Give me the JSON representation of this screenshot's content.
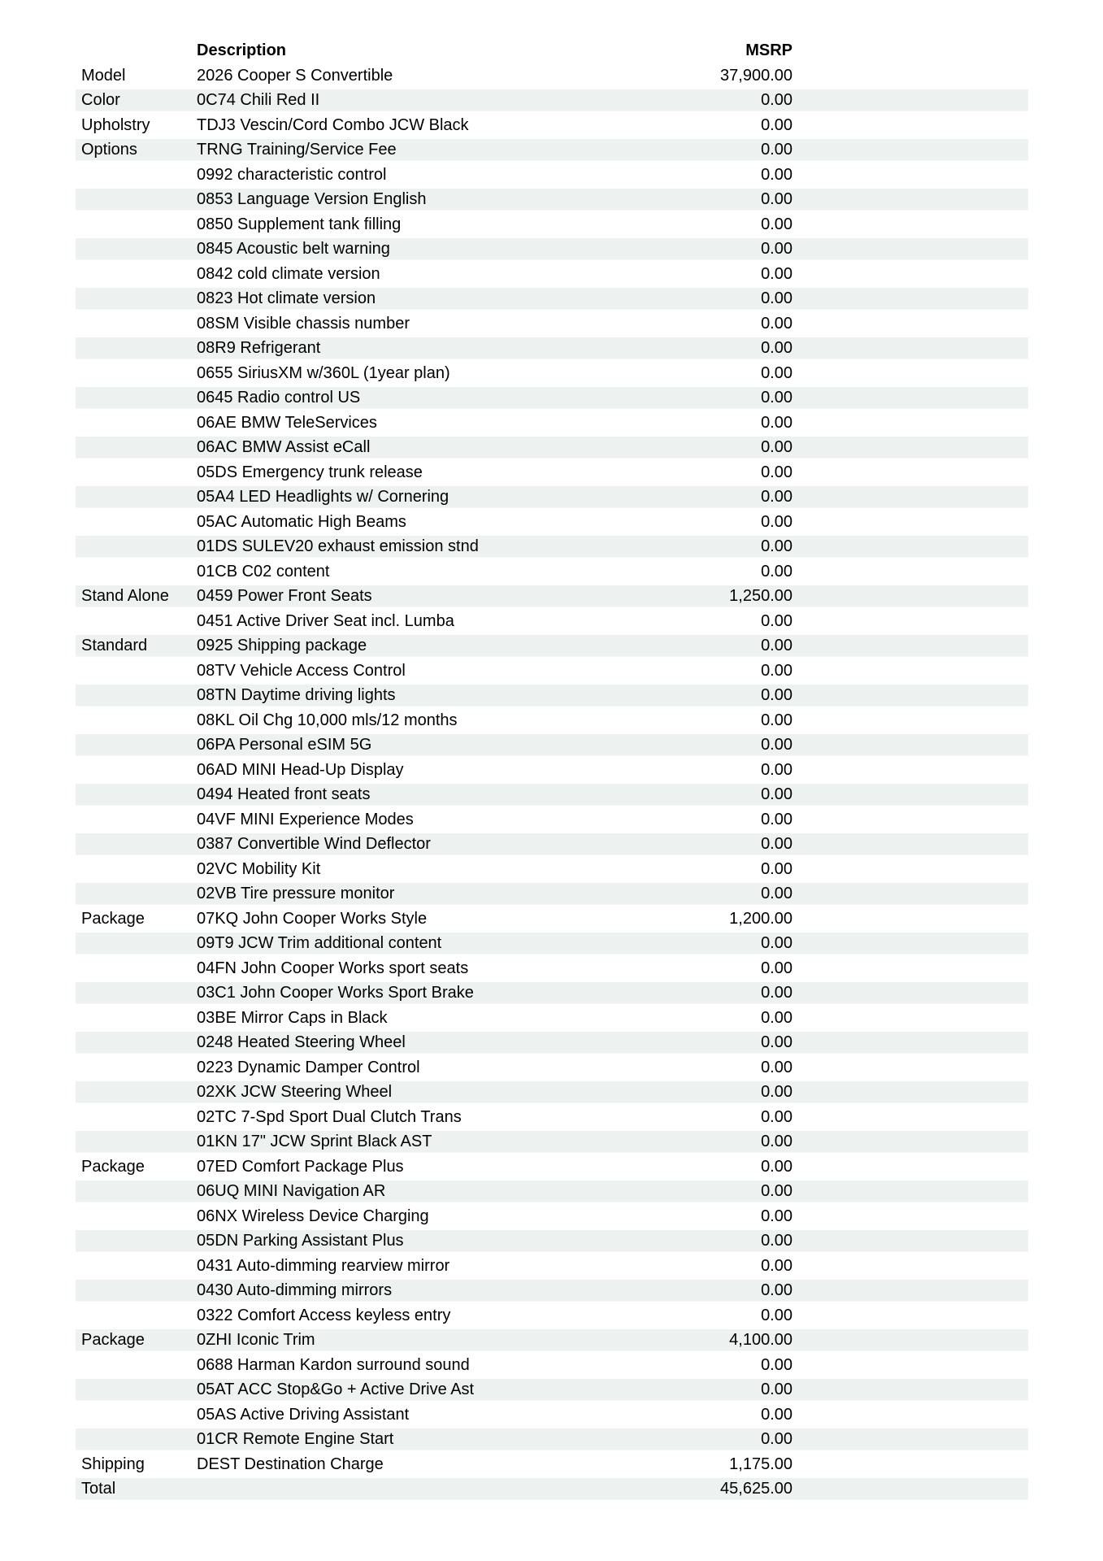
{
  "document": {
    "colors": {
      "stripe": "#edf1f0",
      "page_background": "#ffffff",
      "text": "#000000"
    },
    "header": {
      "description": "Description",
      "msrp": "MSRP"
    },
    "rows": [
      {
        "category": "Model",
        "description": "2026 Cooper S Convertible",
        "msrp": "37,900.00"
      },
      {
        "category": "Color",
        "description": "0C74 Chili Red II",
        "msrp": "0.00"
      },
      {
        "category": "Upholstry",
        "description": "TDJ3 Vescin/Cord Combo JCW Black",
        "msrp": "0.00"
      },
      {
        "category": "Options",
        "description": "TRNG Training/Service Fee",
        "msrp": "0.00"
      },
      {
        "category": "",
        "description": "0992 characteristic control",
        "msrp": "0.00"
      },
      {
        "category": "",
        "description": "0853 Language Version English",
        "msrp": "0.00"
      },
      {
        "category": "",
        "description": "0850 Supplement tank filling",
        "msrp": "0.00"
      },
      {
        "category": "",
        "description": "0845 Acoustic belt warning",
        "msrp": "0.00"
      },
      {
        "category": "",
        "description": "0842 cold climate version",
        "msrp": "0.00"
      },
      {
        "category": "",
        "description": "0823 Hot climate version",
        "msrp": "0.00"
      },
      {
        "category": "",
        "description": "08SM Visible chassis number",
        "msrp": "0.00"
      },
      {
        "category": "",
        "description": "08R9 Refrigerant",
        "msrp": "0.00"
      },
      {
        "category": "",
        "description": "0655 SiriusXM w/360L (1year plan)",
        "msrp": "0.00"
      },
      {
        "category": "",
        "description": "0645 Radio control US",
        "msrp": "0.00"
      },
      {
        "category": "",
        "description": "06AE BMW TeleServices",
        "msrp": "0.00"
      },
      {
        "category": "",
        "description": "06AC BMW Assist eCall",
        "msrp": "0.00"
      },
      {
        "category": "",
        "description": "05DS Emergency trunk release",
        "msrp": "0.00"
      },
      {
        "category": "",
        "description": "05A4 LED Headlights w/ Cornering",
        "msrp": "0.00"
      },
      {
        "category": "",
        "description": "05AC Automatic High Beams",
        "msrp": "0.00"
      },
      {
        "category": "",
        "description": "01DS SULEV20 exhaust emission stnd",
        "msrp": "0.00"
      },
      {
        "category": "",
        "description": "01CB C02 content",
        "msrp": "0.00"
      },
      {
        "category": "Stand Alone",
        "description": "0459 Power Front Seats",
        "msrp": "1,250.00"
      },
      {
        "category": "",
        "description": "0451 Active Driver Seat incl. Lumba",
        "msrp": "0.00"
      },
      {
        "category": "Standard",
        "description": "0925 Shipping package",
        "msrp": "0.00"
      },
      {
        "category": "",
        "description": "08TV Vehicle Access Control",
        "msrp": "0.00"
      },
      {
        "category": "",
        "description": "08TN Daytime driving lights",
        "msrp": "0.00"
      },
      {
        "category": "",
        "description": "08KL Oil Chg 10,000 mls/12 months",
        "msrp": "0.00"
      },
      {
        "category": "",
        "description": "06PA Personal eSIM 5G",
        "msrp": "0.00"
      },
      {
        "category": "",
        "description": "06AD MINI Head-Up Display",
        "msrp": "0.00"
      },
      {
        "category": "",
        "description": "0494 Heated front seats",
        "msrp": "0.00"
      },
      {
        "category": "",
        "description": "04VF MINI Experience Modes",
        "msrp": "0.00"
      },
      {
        "category": "",
        "description": "0387 Convertible Wind Deflector",
        "msrp": "0.00"
      },
      {
        "category": "",
        "description": "02VC Mobility Kit",
        "msrp": "0.00"
      },
      {
        "category": "",
        "description": "02VB Tire pressure monitor",
        "msrp": "0.00"
      },
      {
        "category": "Package",
        "description": "07KQ John Cooper Works Style",
        "msrp": "1,200.00"
      },
      {
        "category": "",
        "description": "09T9 JCW Trim additional content",
        "msrp": "0.00"
      },
      {
        "category": "",
        "description": "04FN John Cooper Works sport seats",
        "msrp": "0.00"
      },
      {
        "category": "",
        "description": "03C1 John Cooper Works Sport Brake",
        "msrp": "0.00"
      },
      {
        "category": "",
        "description": "03BE Mirror Caps in Black",
        "msrp": "0.00"
      },
      {
        "category": "",
        "description": "0248 Heated Steering Wheel",
        "msrp": "0.00"
      },
      {
        "category": "",
        "description": "0223 Dynamic Damper Control",
        "msrp": "0.00"
      },
      {
        "category": "",
        "description": "02XK JCW Steering Wheel",
        "msrp": "0.00"
      },
      {
        "category": "",
        "description": "02TC 7-Spd Sport Dual Clutch Trans",
        "msrp": "0.00"
      },
      {
        "category": "",
        "description": "01KN 17\" JCW Sprint Black AST",
        "msrp": "0.00"
      },
      {
        "category": "Package",
        "description": "07ED Comfort Package Plus",
        "msrp": "0.00"
      },
      {
        "category": "",
        "description": "06UQ MINI Navigation AR",
        "msrp": "0.00"
      },
      {
        "category": "",
        "description": "06NX Wireless Device Charging",
        "msrp": "0.00"
      },
      {
        "category": "",
        "description": "05DN Parking Assistant Plus",
        "msrp": "0.00"
      },
      {
        "category": "",
        "description": "0431 Auto-dimming rearview mirror",
        "msrp": "0.00"
      },
      {
        "category": "",
        "description": "0430 Auto-dimming mirrors",
        "msrp": "0.00"
      },
      {
        "category": "",
        "description": "0322 Comfort Access keyless entry",
        "msrp": "0.00"
      },
      {
        "category": "Package",
        "description": "0ZHI Iconic Trim",
        "msrp": "4,100.00"
      },
      {
        "category": "",
        "description": "0688 Harman Kardon surround sound",
        "msrp": "0.00"
      },
      {
        "category": "",
        "description": "05AT ACC Stop&Go + Active Drive Ast",
        "msrp": "0.00"
      },
      {
        "category": "",
        "description": "05AS Active Driving Assistant",
        "msrp": "0.00"
      },
      {
        "category": "",
        "description": "01CR Remote Engine Start",
        "msrp": "0.00"
      },
      {
        "category": "Shipping",
        "description": "DEST Destination Charge",
        "msrp": "1,175.00"
      },
      {
        "category": "Total",
        "description": "",
        "msrp": "45,625.00"
      }
    ]
  }
}
